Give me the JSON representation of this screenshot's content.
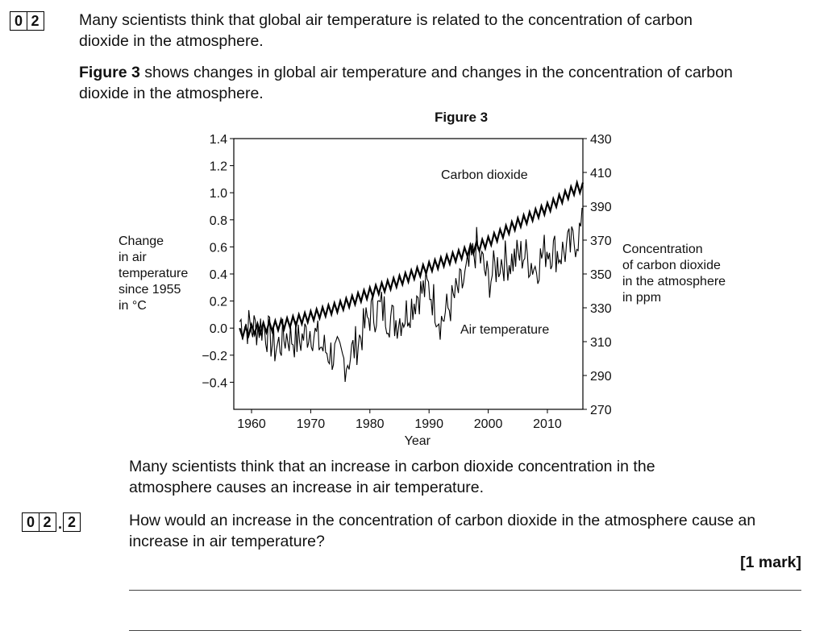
{
  "question": {
    "number_digits": [
      "0",
      "2"
    ],
    "intro": "Many scientists think that global air temperature is related to the concentration of carbon dioxide in the atmosphere.",
    "figure_ref_bold": "Figure 3",
    "figure_ref_rest": " shows changes in global air temperature and changes in the concentration of carbon dioxide in the atmosphere."
  },
  "figure": {
    "title": "Figure 3"
  },
  "chart_data": {
    "type": "line",
    "title": "Figure 3",
    "xlabel": "Year",
    "x_ticks": [
      1960,
      1970,
      1980,
      1990,
      2000,
      2010
    ],
    "x_range": [
      1957,
      2016
    ],
    "left_axis": {
      "label_lines": [
        "Change",
        "in air",
        "temperature",
        "since 1955",
        "in °C"
      ],
      "range": [
        -0.6,
        1.4
      ],
      "ticks": [
        1.4,
        1.2,
        1.0,
        0.8,
        0.6,
        0.4,
        0.2,
        0.0,
        -0.2,
        -0.4
      ],
      "tick_labels": [
        "1.4",
        "1.2",
        "1.0",
        "0.8",
        "0.6",
        "0.4",
        "0.2",
        "0.0",
        "−0.2",
        "−0.4"
      ]
    },
    "right_axis": {
      "label_lines": [
        "Concentration",
        "of carbon dioxide",
        "in the atmosphere",
        "in ppm"
      ],
      "range": [
        270,
        430
      ],
      "ticks": [
        430,
        410,
        390,
        370,
        350,
        330,
        310,
        290,
        270
      ],
      "tick_labels": [
        "430",
        "410",
        "390",
        "370",
        "350",
        "330",
        "310",
        "290",
        "270"
      ]
    },
    "series": [
      {
        "name": "Carbon dioxide",
        "axis": "right",
        "label": "Carbon dioxide",
        "years": [
          1958,
          1960,
          1965,
          1970,
          1975,
          1980,
          1985,
          1990,
          1995,
          2000,
          2005,
          2010,
          2015
        ],
        "values": [
          315,
          317,
          320,
          325,
          331,
          339,
          346,
          354,
          361,
          369,
          380,
          389,
          401
        ],
        "seasonal_amplitude_ppm": 3
      },
      {
        "name": "Air temperature",
        "axis": "left",
        "label": "Air temperature",
        "years": [
          1958,
          1960,
          1962,
          1964,
          1966,
          1968,
          1970,
          1972,
          1974,
          1976,
          1978,
          1980,
          1982,
          1984,
          1986,
          1988,
          1990,
          1992,
          1994,
          1996,
          1998,
          2000,
          2002,
          2004,
          2006,
          2008,
          2010,
          2012,
          2014,
          2016
        ],
        "values": [
          0.05,
          0.0,
          0.02,
          -0.15,
          -0.05,
          -0.1,
          0.0,
          -0.15,
          -0.2,
          -0.25,
          -0.1,
          0.1,
          0.15,
          0.05,
          0.1,
          0.25,
          0.3,
          0.05,
          0.2,
          0.35,
          0.6,
          0.35,
          0.5,
          0.5,
          0.55,
          0.45,
          0.6,
          0.55,
          0.6,
          0.75
        ]
      }
    ]
  },
  "statement": "Many scientists think that an increase in carbon dioxide concentration in the atmosphere causes an increase in air temperature.",
  "subquestion": {
    "number_digits": [
      "0",
      "2",
      "2"
    ],
    "separator": ".",
    "text": "How would an increase in the concentration of carbon dioxide in the atmosphere cause an increase in air temperature?",
    "marks": "[1 mark]"
  }
}
